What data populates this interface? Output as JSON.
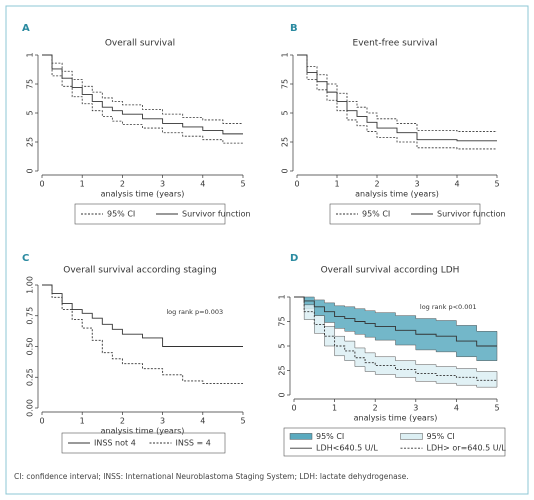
{
  "chart_data": [
    {
      "type": "step",
      "panel": "A",
      "title": "Overall survival",
      "xlabel": "analysis time (years)",
      "x": [
        0,
        0.25,
        0.5,
        0.75,
        1,
        1.25,
        1.5,
        1.75,
        2,
        2.5,
        3,
        3.5,
        4,
        4.5,
        5
      ],
      "xlim": [
        0,
        5
      ],
      "xticks": [
        0,
        1,
        2,
        3,
        4,
        5
      ],
      "ylim": [
        0,
        1
      ],
      "yticks": [
        0,
        {
          "value": 0.25,
          "label": "25"
        },
        {
          "value": 0.5,
          "label": "5"
        },
        {
          "value": 0.75,
          "label": "75"
        },
        1
      ],
      "series": [
        {
          "name": "Survivor function",
          "color": "#333333",
          "style": "solid",
          "values": [
            1,
            0.88,
            0.8,
            0.72,
            0.66,
            0.6,
            0.55,
            0.52,
            0.49,
            0.45,
            0.41,
            0.38,
            0.35,
            0.32,
            0.32
          ],
          "ci": {
            "name": "95% CI",
            "color": "#333333",
            "upper": [
              1,
              0.93,
              0.86,
              0.79,
              0.73,
              0.68,
              0.63,
              0.6,
              0.57,
              0.53,
              0.49,
              0.46,
              0.44,
              0.41,
              0.41
            ],
            "lower": [
              1,
              0.82,
              0.73,
              0.64,
              0.58,
              0.52,
              0.47,
              0.43,
              0.4,
              0.37,
              0.33,
              0.3,
              0.27,
              0.24,
              0.24
            ]
          }
        }
      ]
    },
    {
      "type": "step",
      "panel": "B",
      "title": "Event-free survival",
      "xlabel": "analysis time (years)",
      "x": [
        0,
        0.25,
        0.5,
        0.75,
        1,
        1.25,
        1.5,
        1.75,
        2,
        2.5,
        3,
        3.5,
        4,
        4.5,
        5
      ],
      "xlim": [
        0,
        5
      ],
      "xticks": [
        0,
        1,
        2,
        3,
        4,
        5
      ],
      "ylim": [
        0,
        1
      ],
      "yticks": [
        0,
        {
          "value": 0.25,
          "label": "25"
        },
        {
          "value": 0.5,
          "label": "5"
        },
        {
          "value": 0.75,
          "label": "75"
        },
        1
      ],
      "series": [
        {
          "name": "Survivor function",
          "color": "#333333",
          "style": "solid",
          "values": [
            1,
            0.85,
            0.77,
            0.68,
            0.6,
            0.52,
            0.47,
            0.42,
            0.37,
            0.33,
            0.27,
            0.27,
            0.26,
            0.26,
            0.26
          ],
          "ci": {
            "name": "95% CI",
            "color": "#333333",
            "upper": [
              1,
              0.9,
              0.83,
              0.75,
              0.67,
              0.6,
              0.55,
              0.5,
              0.45,
              0.41,
              0.35,
              0.35,
              0.34,
              0.34,
              0.34
            ],
            "lower": [
              1,
              0.79,
              0.7,
              0.61,
              0.52,
              0.44,
              0.39,
              0.34,
              0.29,
              0.25,
              0.2,
              0.2,
              0.19,
              0.19,
              0.19
            ]
          }
        }
      ]
    },
    {
      "type": "step",
      "panel": "C",
      "title": "Overall survival according staging",
      "xlabel": "analysis time (years)",
      "annotation": "log rank p=0.003",
      "annotation_at": [
        3.8,
        0.78
      ],
      "x": [
        0,
        0.25,
        0.5,
        0.75,
        1,
        1.25,
        1.5,
        1.75,
        2,
        2.5,
        3,
        3.5,
        4,
        4.5,
        5
      ],
      "xlim": [
        0,
        5
      ],
      "xticks": [
        0,
        1,
        2,
        3,
        4,
        5
      ],
      "ylim": [
        0,
        1
      ],
      "yticks": [
        {
          "value": 0,
          "label": "0.00"
        },
        {
          "value": 0.25,
          "label": "0.25"
        },
        {
          "value": 0.5,
          "label": "0.50"
        },
        {
          "value": 0.75,
          "label": "0.75"
        },
        {
          "value": 1,
          "label": "1.00"
        }
      ],
      "series": [
        {
          "name": "INSS not 4",
          "color": "#333333",
          "style": "solid",
          "values": [
            1,
            0.93,
            0.85,
            0.8,
            0.77,
            0.73,
            0.68,
            0.64,
            0.6,
            0.57,
            0.5,
            0.5,
            0.5,
            0.5,
            0.5
          ]
        },
        {
          "name": "INSS = 4",
          "color": "#333333",
          "style": "dashed",
          "values": [
            1,
            0.9,
            0.8,
            0.72,
            0.65,
            0.55,
            0.45,
            0.4,
            0.36,
            0.32,
            0.27,
            0.22,
            0.2,
            0.2,
            0.2
          ]
        }
      ]
    },
    {
      "type": "step",
      "panel": "D",
      "title": "Overall survival according LDH",
      "xlabel": "analysis time (years)",
      "annotation": "log rank p<0.001",
      "annotation_at": [
        3.8,
        0.9
      ],
      "x": [
        0,
        0.25,
        0.5,
        0.75,
        1,
        1.25,
        1.5,
        1.75,
        2,
        2.5,
        3,
        3.5,
        4,
        4.5,
        5
      ],
      "xlim": [
        0,
        5
      ],
      "xticks": [
        0,
        1,
        2,
        3,
        4,
        5
      ],
      "ylim": [
        0,
        1
      ],
      "yticks": [
        0,
        {
          "value": 0.25,
          "label": "25"
        },
        {
          "value": 0.5,
          "label": "5"
        },
        {
          "value": 0.75,
          "label": "75"
        },
        1
      ],
      "series": [
        {
          "name": "LDH<640.5 U/L",
          "color": "#333333",
          "style": "solid",
          "values": [
            1,
            0.96,
            0.9,
            0.85,
            0.8,
            0.78,
            0.75,
            0.73,
            0.7,
            0.66,
            0.62,
            0.6,
            0.55,
            0.5,
            0.5
          ],
          "ci": {
            "name": "95% CI",
            "color": "#5aaabf",
            "upper": [
              1,
              1,
              0.97,
              0.94,
              0.91,
              0.9,
              0.88,
              0.86,
              0.84,
              0.81,
              0.78,
              0.76,
              0.71,
              0.65,
              0.65
            ],
            "lower": [
              1,
              0.88,
              0.81,
              0.74,
              0.68,
              0.65,
              0.62,
              0.59,
              0.56,
              0.51,
              0.46,
              0.44,
              0.39,
              0.35,
              0.35
            ]
          }
        },
        {
          "name": "LDH> or=640.5 U/L",
          "color": "#333333",
          "style": "dashed",
          "values": [
            1,
            0.85,
            0.72,
            0.6,
            0.5,
            0.45,
            0.38,
            0.33,
            0.3,
            0.26,
            0.22,
            0.2,
            0.18,
            0.15,
            0.15
          ],
          "ci": {
            "name": "95% CI",
            "color": "#dceff3",
            "upper": [
              1,
              0.92,
              0.81,
              0.7,
              0.6,
              0.55,
              0.48,
              0.43,
              0.39,
              0.35,
              0.31,
              0.29,
              0.27,
              0.24,
              0.24
            ],
            "lower": [
              1,
              0.77,
              0.63,
              0.5,
              0.4,
              0.35,
              0.29,
              0.24,
              0.21,
              0.18,
              0.14,
              0.12,
              0.1,
              0.08,
              0.08
            ]
          }
        }
      ]
    }
  ],
  "footnote": "CI: confidence interval; INSS: International Neuroblastoma Staging System; LDH: lactate dehydrogenase."
}
